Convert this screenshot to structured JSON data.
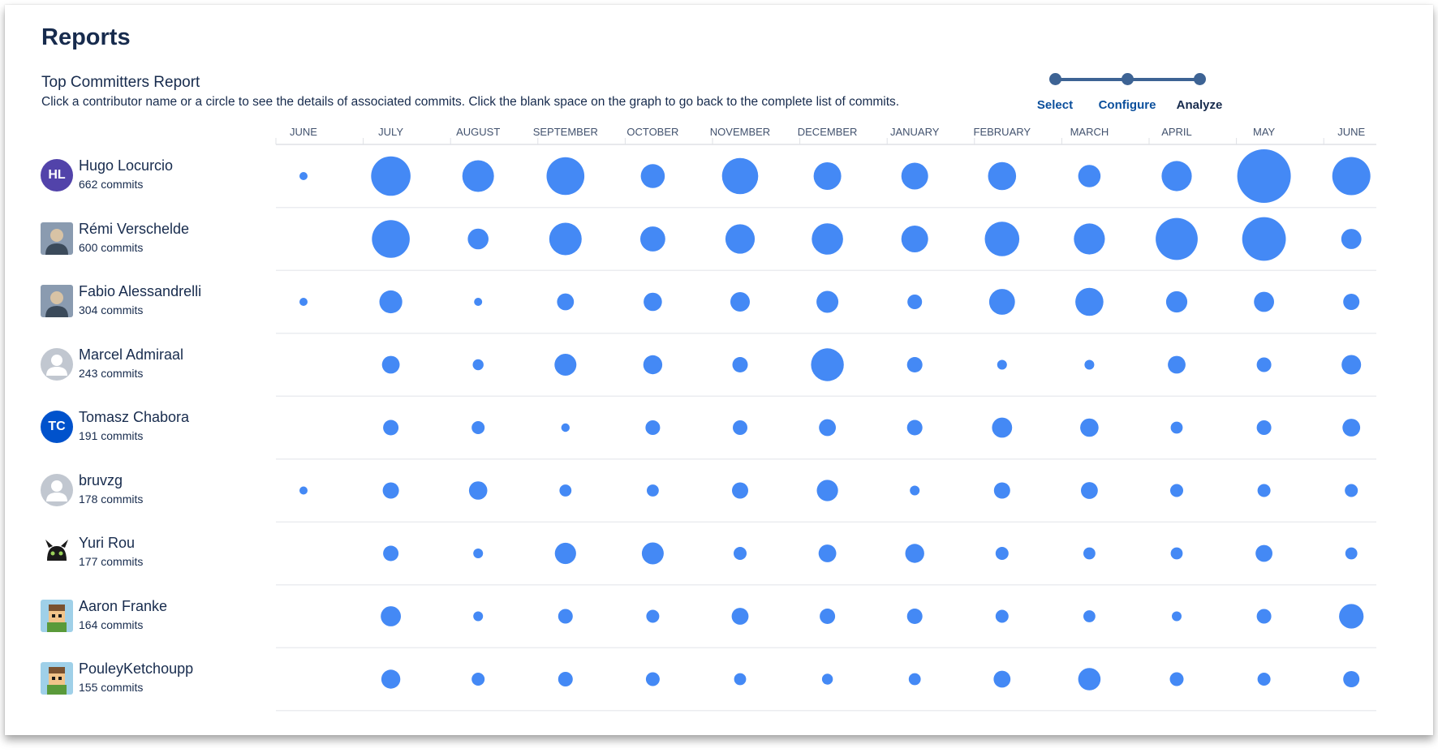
{
  "page": {
    "title": "Reports"
  },
  "report": {
    "title": "Top Committers Report",
    "description": "Click a contributor name or a circle to see the details of associated commits. Click the blank space on the graph to go back to the complete list of commits."
  },
  "stepper": {
    "steps": [
      {
        "label": "Select",
        "state": "link"
      },
      {
        "label": "Configure",
        "state": "link"
      },
      {
        "label": "Analyze",
        "state": "current"
      }
    ],
    "color": "#3d6394"
  },
  "colors": {
    "bubble": "#4489f5",
    "gridline": "#ebecf0"
  },
  "contributors": [
    {
      "name": "Hugo Locurcio",
      "commits": "662 commits",
      "avatar": {
        "type": "initials",
        "text": "HL",
        "color": "#5243aa"
      }
    },
    {
      "name": "Rémi Verschelde",
      "commits": "600 commits",
      "avatar": {
        "type": "photo",
        "icon": "photo-avatar-icon"
      }
    },
    {
      "name": "Fabio Alessandrelli",
      "commits": "304 commits",
      "avatar": {
        "type": "photo",
        "icon": "photo-avatar-icon"
      }
    },
    {
      "name": "Marcel Admiraal",
      "commits": "243 commits",
      "avatar": {
        "type": "default",
        "icon": "default-user-icon"
      }
    },
    {
      "name": "Tomasz Chabora",
      "commits": "191 commits",
      "avatar": {
        "type": "initials",
        "text": "TC",
        "color": "#0052cc"
      }
    },
    {
      "name": "bruvzg",
      "commits": "178 commits",
      "avatar": {
        "type": "default",
        "icon": "default-user-icon"
      }
    },
    {
      "name": "Yuri Rou",
      "commits": "177 commits",
      "avatar": {
        "type": "photo",
        "icon": "dragon-avatar-icon"
      }
    },
    {
      "name": "Aaron Franke",
      "commits": "164 commits",
      "avatar": {
        "type": "photo",
        "icon": "pixel-character-avatar-icon"
      }
    },
    {
      "name": "PouleyKetchoupp",
      "commits": "155 commits",
      "avatar": {
        "type": "photo",
        "icon": "pixel-character-avatar-icon"
      }
    }
  ],
  "chart_data": {
    "type": "bubble-matrix",
    "categories": [
      "JUNE",
      "JULY",
      "AUGUST",
      "SEPTEMBER",
      "OCTOBER",
      "NOVEMBER",
      "DECEMBER",
      "JANUARY",
      "FEBRUARY",
      "MARCH",
      "APRIL",
      "MAY",
      "JUNE"
    ],
    "series": [
      {
        "name": "Hugo Locurcio",
        "values": [
          1,
          65,
          42,
          60,
          24,
          55,
          32,
          30,
          33,
          21,
          38,
          120,
          61
        ]
      },
      {
        "name": "Rémi Verschelde",
        "values": [
          0,
          60,
          18,
          44,
          26,
          36,
          41,
          30,
          50,
          40,
          74,
          80,
          17
        ]
      },
      {
        "name": "Fabio Alessandrelli",
        "values": [
          1,
          22,
          2,
          12,
          14,
          16,
          20,
          9,
          28,
          33,
          19,
          17,
          11
        ]
      },
      {
        "name": "Marcel Admiraal",
        "values": [
          0,
          13,
          5,
          20,
          15,
          10,
          45,
          10,
          4,
          4,
          13,
          9,
          16
        ]
      },
      {
        "name": "Tomasz Chabora",
        "values": [
          0,
          10,
          7,
          3,
          9,
          9,
          12,
          10,
          17,
          14,
          6,
          9,
          13
        ]
      },
      {
        "name": "bruvzg",
        "values": [
          1,
          11,
          14,
          6,
          6,
          11,
          19,
          4,
          11,
          12,
          7,
          7,
          7
        ]
      },
      {
        "name": "Yuri Rou",
        "values": [
          0,
          10,
          4,
          19,
          20,
          7,
          13,
          15,
          7,
          6,
          6,
          12,
          6
        ]
      },
      {
        "name": "Aaron Franke",
        "values": [
          0,
          17,
          4,
          9,
          7,
          12,
          10,
          10,
          7,
          6,
          4,
          9,
          25
        ]
      },
      {
        "name": "PouleyKetchoupp",
        "values": [
          0,
          15,
          7,
          9,
          8,
          6,
          5,
          6,
          12,
          21,
          8,
          7,
          11
        ]
      }
    ]
  }
}
